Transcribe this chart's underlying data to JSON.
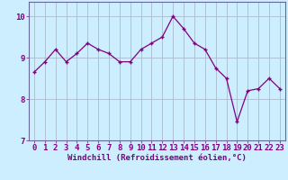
{
  "x": [
    0,
    1,
    2,
    3,
    4,
    5,
    6,
    7,
    8,
    9,
    10,
    11,
    12,
    13,
    14,
    15,
    16,
    17,
    18,
    19,
    20,
    21,
    22,
    23
  ],
  "y": [
    8.65,
    8.9,
    9.2,
    8.9,
    9.1,
    9.35,
    9.2,
    9.1,
    8.9,
    8.9,
    9.2,
    9.35,
    9.5,
    10.0,
    9.7,
    9.35,
    9.2,
    8.75,
    8.5,
    7.45,
    8.2,
    8.25,
    8.5,
    8.25
  ],
  "line_color": "#800080",
  "marker": "+",
  "marker_color": "#800080",
  "bg_color": "#cceeff",
  "grid_color": "#aabbcc",
  "xlabel": "Windchill (Refroidissement éolien,°C)",
  "ylim": [
    7,
    10.35
  ],
  "yticks": [
    7,
    8,
    9,
    10
  ],
  "xlim": [
    -0.5,
    23.5
  ],
  "xticks": [
    0,
    1,
    2,
    3,
    4,
    5,
    6,
    7,
    8,
    9,
    10,
    11,
    12,
    13,
    14,
    15,
    16,
    17,
    18,
    19,
    20,
    21,
    22,
    23
  ],
  "xtick_labels": [
    "0",
    "1",
    "2",
    "3",
    "4",
    "5",
    "6",
    "7",
    "8",
    "9",
    "10",
    "11",
    "12",
    "13",
    "14",
    "15",
    "16",
    "17",
    "18",
    "19",
    "20",
    "21",
    "22",
    "23"
  ],
  "line_width": 0.9,
  "marker_size": 3,
  "font_color": "#800080",
  "xlabel_fontsize": 6.5,
  "tick_fontsize": 6.5,
  "spine_color": "#666699"
}
